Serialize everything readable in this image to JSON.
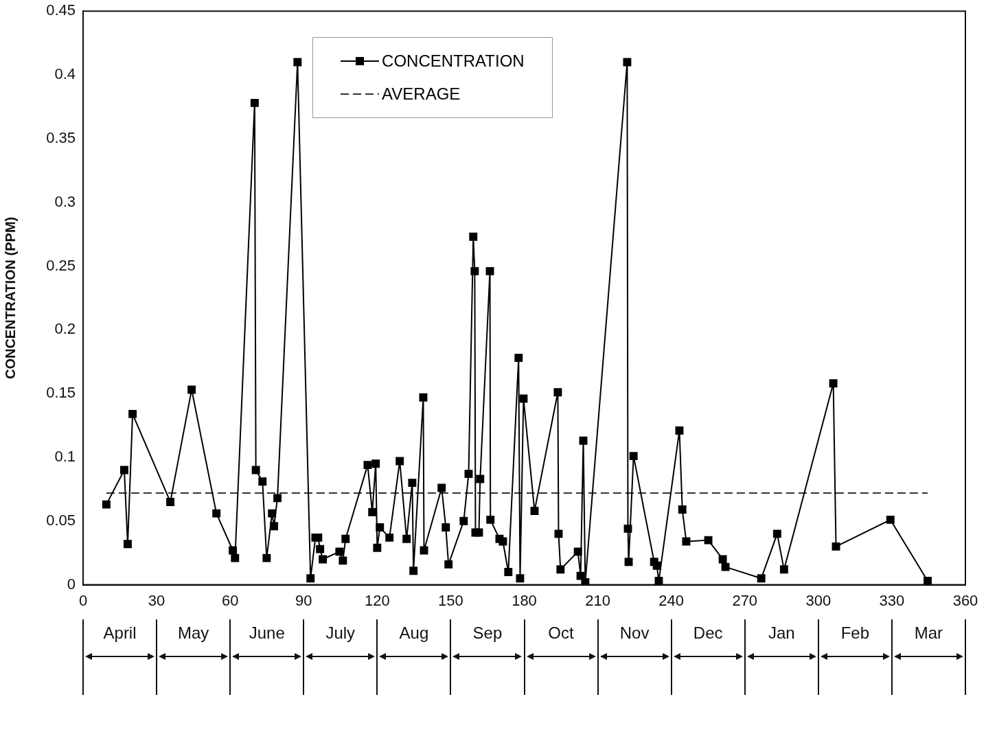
{
  "chart_data": {
    "type": "line",
    "ylabel": "CONCENTRATION (PPM)",
    "xlim": [
      0,
      360
    ],
    "xticks": [
      0,
      30,
      60,
      90,
      120,
      150,
      180,
      210,
      240,
      270,
      300,
      330,
      360
    ],
    "ylim": [
      0,
      0.45
    ],
    "yticks": [
      0,
      0.05,
      0.1,
      0.15,
      0.2,
      0.25,
      0.3,
      0.35,
      0.4,
      0.45
    ],
    "grid": false,
    "legend": "top",
    "series": [
      {
        "name": "CONCENTRATION",
        "color": "#000000",
        "marker": "square",
        "line_style": "solid",
        "x": [
          9.5,
          16.8,
          18.2,
          20.2,
          35.6,
          44.3,
          54.4,
          61.1,
          62,
          70,
          70.5,
          73.2,
          74.9,
          77.1,
          77.9,
          79.3,
          87.5,
          92.8,
          94.8,
          95.9,
          96.7,
          97.8,
          104.6,
          106,
          107.1,
          116.1,
          118,
          119.4,
          120,
          121.1,
          125,
          129.2,
          132,
          134.3,
          134.8,
          138.8,
          139.1,
          146.3,
          148,
          149.1,
          155.3,
          157.3,
          159.2,
          159.8,
          160.1,
          161.5,
          162,
          166,
          166.2,
          169.9,
          171.3,
          173.5,
          177.7,
          178.3,
          179.7,
          184.2,
          193.7,
          194,
          194.8,
          201.9,
          203,
          204.1,
          204.9,
          222,
          222.3,
          222.6,
          224.6,
          233,
          234.1,
          234.9,
          243.3,
          244.5,
          246.1,
          255.1,
          261,
          262.1,
          276.7,
          283.2,
          286,
          306.1,
          307.2,
          329.4,
          344.6
        ],
        "values": [
          0.063,
          0.09,
          0.032,
          0.134,
          0.065,
          0.153,
          0.056,
          0.027,
          0.021,
          0.378,
          0.09,
          0.081,
          0.021,
          0.056,
          0.046,
          0.068,
          0.41,
          0.005,
          0.037,
          0.037,
          0.028,
          0.02,
          0.026,
          0.019,
          0.036,
          0.094,
          0.057,
          0.095,
          0.029,
          0.045,
          0.037,
          0.097,
          0.036,
          0.08,
          0.011,
          0.147,
          0.027,
          0.076,
          0.045,
          0.016,
          0.05,
          0.087,
          0.273,
          0.246,
          0.041,
          0.041,
          0.083,
          0.246,
          0.051,
          0.036,
          0.034,
          0.01,
          0.178,
          0.005,
          0.146,
          0.058,
          0.151,
          0.04,
          0.012,
          0.026,
          0.007,
          0.113,
          0.002,
          0.41,
          0.044,
          0.018,
          0.101,
          0.018,
          0.015,
          0.003,
          0.121,
          0.059,
          0.034,
          0.035,
          0.02,
          0.014,
          0.005,
          0.04,
          0.012,
          0.158,
          0.03,
          0.051,
          0.003
        ]
      },
      {
        "name": "AVERAGE",
        "color": "#333333",
        "marker": "none",
        "line_style": "dashed",
        "x": [
          9.5,
          344.6
        ],
        "values": [
          0.072,
          0.072
        ]
      }
    ],
    "annotations": [
      "April",
      "May",
      "June",
      "July",
      "Aug",
      "Sep",
      "Oct",
      "Nov",
      "Dec",
      "Jan",
      "Feb",
      "Mar"
    ]
  }
}
